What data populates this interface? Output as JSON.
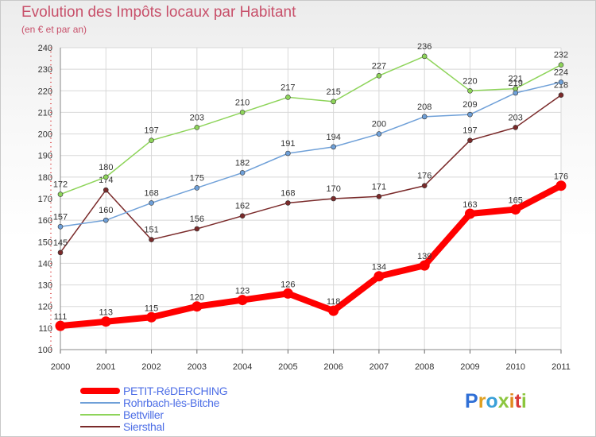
{
  "title": "Evolution des Impôts locaux par Habitant",
  "subtitle": "(en € et par an)",
  "logo_text": "Proxiti",
  "chart_data": {
    "type": "line",
    "title": "Evolution des Impôts locaux par Habitant",
    "subtitle": "(en € et par an)",
    "xlabel": "",
    "ylabel": "",
    "x": [
      "2000",
      "2001",
      "2002",
      "2003",
      "2004",
      "2005",
      "2006",
      "2007",
      "2008",
      "2009",
      "2010",
      "2011"
    ],
    "ylim": [
      100,
      240
    ],
    "yticks": [
      100,
      110,
      120,
      130,
      140,
      150,
      160,
      170,
      180,
      190,
      200,
      210,
      220,
      230,
      240
    ],
    "grid": true,
    "legend_position": "bottom-left",
    "series": [
      {
        "name": "PETIT-RéDERCHING",
        "color": "#ff0000",
        "values": [
          111,
          113,
          115,
          120,
          123,
          126,
          118,
          134,
          139,
          163,
          165,
          176
        ]
      },
      {
        "name": "Rohrbach-lès-Bitche",
        "color": "#6fa0d8",
        "values": [
          157,
          160,
          168,
          175,
          182,
          191,
          194,
          200,
          208,
          209,
          219,
          224
        ]
      },
      {
        "name": "Bettviller",
        "color": "#8ed45a",
        "values": [
          172,
          180,
          197,
          203,
          210,
          217,
          215,
          227,
          236,
          220,
          221,
          232
        ]
      },
      {
        "name": "Siersthal",
        "color": "#7a2a2a",
        "values": [
          145,
          174,
          151,
          156,
          162,
          168,
          170,
          171,
          176,
          197,
          203,
          218
        ]
      }
    ]
  }
}
